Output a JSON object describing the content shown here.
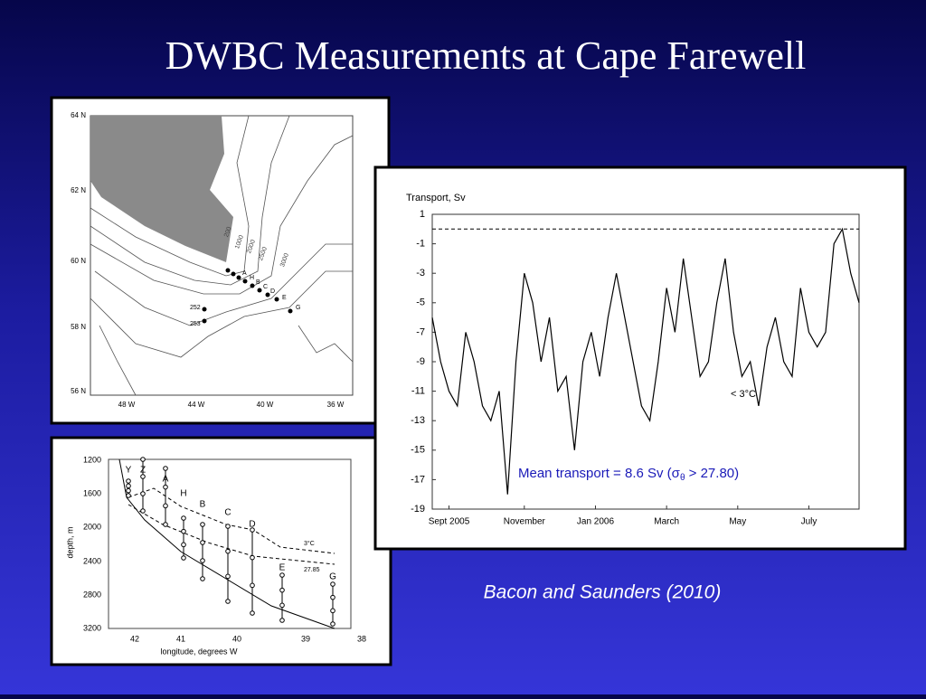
{
  "slide": {
    "title": "DWBC Measurements at Cape Farewell",
    "citation": "Bacon and Saunders (2010)"
  },
  "chart_data": {
    "type": "line",
    "y_label": "Transport, Sv",
    "color": "#000000",
    "values": [
      -6,
      -9,
      -11,
      -12,
      -7,
      -9,
      -12,
      -13,
      -11,
      -18,
      -9,
      -3,
      -5,
      -9,
      -6,
      -11,
      -10,
      -15,
      -9,
      -7,
      -10,
      -6,
      -3,
      -6,
      -9,
      -12,
      -13,
      -9,
      -4,
      -7,
      -2,
      -6,
      -10,
      -9,
      -5,
      -2,
      -7,
      -10,
      -9,
      -12,
      -8,
      -6,
      -9,
      -10,
      -4,
      -7,
      -8,
      -7,
      -1,
      0,
      -3,
      -5
    ],
    "xlim": [
      0,
      51
    ],
    "xticks": [
      {
        "value": 2,
        "label": "Sept 2005"
      },
      {
        "value": 11,
        "label": "November"
      },
      {
        "value": 19.5,
        "label": "Jan 2006"
      },
      {
        "value": 28,
        "label": "March"
      },
      {
        "value": 36.5,
        "label": "May"
      },
      {
        "value": 45,
        "label": "July"
      }
    ],
    "ylim": [
      -19,
      1
    ],
    "yticks": [
      1,
      -1,
      -3,
      -5,
      -7,
      -9,
      -11,
      -13,
      -15,
      -17,
      -19
    ],
    "reference_line": 0,
    "annotation": "< 3°C",
    "mean_label": [
      "Mean transport = 8.6 Sv (σ",
      "θ",
      " > 27.80)"
    ]
  },
  "map": {
    "lat_labels": [
      "64 N",
      "62 N",
      "60 N",
      "58 N",
      "56 N"
    ],
    "lon_labels": [
      "48 W",
      "44 W",
      "40 W",
      "36 W"
    ],
    "contour_labels": [
      "200",
      "1000",
      "2000",
      "2500",
      "3000"
    ],
    "station_labels": [
      "A",
      "H",
      "B",
      "C",
      "D",
      "E",
      "G",
      "252",
      "253"
    ]
  },
  "section": {
    "y_label": "depth, m",
    "x_label": "longitude, degrees W",
    "depth_labels": [
      1200,
      1600,
      2000,
      2400,
      2800,
      3200
    ],
    "lon_labels": [
      42,
      41,
      40,
      39,
      38
    ],
    "stations": [
      "Y",
      "Z",
      "A",
      "H",
      "B",
      "C",
      "D",
      "E",
      "G"
    ],
    "isoline_labels": [
      "3°C",
      "27.85"
    ]
  }
}
